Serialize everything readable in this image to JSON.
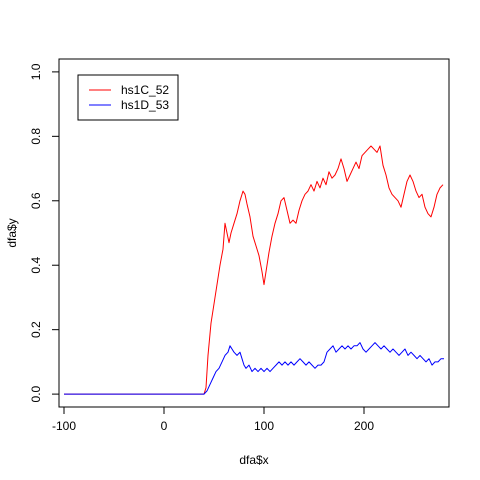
{
  "chart_data": {
    "type": "line",
    "xlabel": "dfa$x",
    "ylabel": "dfa$y",
    "xlim": [
      -105,
      285
    ],
    "ylim": [
      -0.04,
      1.04
    ],
    "x_ticks": [
      "-100",
      "0",
      "100",
      "200"
    ],
    "y_ticks": [
      "0.0",
      "0.2",
      "0.4",
      "0.6",
      "0.8",
      "1.0"
    ],
    "grid": false,
    "legend_position": "top-left",
    "series": [
      {
        "name": "hs1C_52",
        "color": "#ff0000",
        "points": [
          [
            -100,
            0
          ],
          [
            40,
            0
          ],
          [
            42,
            0.02
          ],
          [
            44,
            0.12
          ],
          [
            47,
            0.22
          ],
          [
            50,
            0.28
          ],
          [
            53,
            0.34
          ],
          [
            56,
            0.4
          ],
          [
            59,
            0.45
          ],
          [
            61,
            0.53
          ],
          [
            63,
            0.5
          ],
          [
            65,
            0.47
          ],
          [
            67,
            0.5
          ],
          [
            70,
            0.53
          ],
          [
            73,
            0.56
          ],
          [
            76,
            0.6
          ],
          [
            79,
            0.63
          ],
          [
            81,
            0.62
          ],
          [
            83,
            0.59
          ],
          [
            86,
            0.55
          ],
          [
            89,
            0.49
          ],
          [
            92,
            0.46
          ],
          [
            95,
            0.43
          ],
          [
            98,
            0.38
          ],
          [
            100,
            0.34
          ],
          [
            102,
            0.38
          ],
          [
            105,
            0.44
          ],
          [
            108,
            0.49
          ],
          [
            111,
            0.53
          ],
          [
            114,
            0.56
          ],
          [
            117,
            0.6
          ],
          [
            120,
            0.61
          ],
          [
            123,
            0.57
          ],
          [
            126,
            0.53
          ],
          [
            129,
            0.54
          ],
          [
            132,
            0.53
          ],
          [
            135,
            0.57
          ],
          [
            138,
            0.6
          ],
          [
            141,
            0.62
          ],
          [
            144,
            0.63
          ],
          [
            147,
            0.65
          ],
          [
            150,
            0.63
          ],
          [
            153,
            0.66
          ],
          [
            156,
            0.64
          ],
          [
            159,
            0.67
          ],
          [
            162,
            0.65
          ],
          [
            165,
            0.69
          ],
          [
            168,
            0.67
          ],
          [
            171,
            0.68
          ],
          [
            174,
            0.7
          ],
          [
            177,
            0.73
          ],
          [
            180,
            0.7
          ],
          [
            183,
            0.66
          ],
          [
            186,
            0.68
          ],
          [
            189,
            0.7
          ],
          [
            192,
            0.72
          ],
          [
            195,
            0.7
          ],
          [
            198,
            0.74
          ],
          [
            201,
            0.75
          ],
          [
            204,
            0.76
          ],
          [
            207,
            0.77
          ],
          [
            210,
            0.76
          ],
          [
            213,
            0.75
          ],
          [
            216,
            0.77
          ],
          [
            219,
            0.71
          ],
          [
            222,
            0.68
          ],
          [
            225,
            0.64
          ],
          [
            228,
            0.62
          ],
          [
            231,
            0.61
          ],
          [
            234,
            0.6
          ],
          [
            237,
            0.58
          ],
          [
            240,
            0.62
          ],
          [
            243,
            0.66
          ],
          [
            246,
            0.68
          ],
          [
            249,
            0.66
          ],
          [
            252,
            0.63
          ],
          [
            255,
            0.61
          ],
          [
            258,
            0.62
          ],
          [
            261,
            0.58
          ],
          [
            264,
            0.56
          ],
          [
            267,
            0.55
          ],
          [
            270,
            0.58
          ],
          [
            273,
            0.62
          ],
          [
            276,
            0.64
          ],
          [
            279,
            0.65
          ]
        ]
      },
      {
        "name": "hs1D_53",
        "color": "#0000ff",
        "points": [
          [
            -100,
            0
          ],
          [
            40,
            0
          ],
          [
            43,
            0.01
          ],
          [
            46,
            0.03
          ],
          [
            49,
            0.05
          ],
          [
            52,
            0.07
          ],
          [
            55,
            0.08
          ],
          [
            58,
            0.1
          ],
          [
            61,
            0.12
          ],
          [
            64,
            0.13
          ],
          [
            66,
            0.15
          ],
          [
            68,
            0.14
          ],
          [
            70,
            0.13
          ],
          [
            73,
            0.12
          ],
          [
            76,
            0.13
          ],
          [
            78,
            0.11
          ],
          [
            80,
            0.09
          ],
          [
            82,
            0.08
          ],
          [
            85,
            0.09
          ],
          [
            88,
            0.07
          ],
          [
            91,
            0.08
          ],
          [
            94,
            0.07
          ],
          [
            97,
            0.08
          ],
          [
            100,
            0.07
          ],
          [
            103,
            0.08
          ],
          [
            106,
            0.07
          ],
          [
            109,
            0.08
          ],
          [
            112,
            0.09
          ],
          [
            115,
            0.1
          ],
          [
            118,
            0.09
          ],
          [
            121,
            0.1
          ],
          [
            124,
            0.09
          ],
          [
            127,
            0.1
          ],
          [
            130,
            0.09
          ],
          [
            133,
            0.1
          ],
          [
            136,
            0.11
          ],
          [
            139,
            0.1
          ],
          [
            142,
            0.09
          ],
          [
            145,
            0.1
          ],
          [
            148,
            0.09
          ],
          [
            151,
            0.08
          ],
          [
            154,
            0.09
          ],
          [
            157,
            0.09
          ],
          [
            160,
            0.1
          ],
          [
            163,
            0.13
          ],
          [
            166,
            0.14
          ],
          [
            169,
            0.15
          ],
          [
            172,
            0.13
          ],
          [
            175,
            0.14
          ],
          [
            178,
            0.15
          ],
          [
            181,
            0.14
          ],
          [
            184,
            0.15
          ],
          [
            187,
            0.14
          ],
          [
            190,
            0.15
          ],
          [
            193,
            0.15
          ],
          [
            196,
            0.16
          ],
          [
            199,
            0.14
          ],
          [
            202,
            0.13
          ],
          [
            205,
            0.14
          ],
          [
            208,
            0.15
          ],
          [
            211,
            0.16
          ],
          [
            214,
            0.15
          ],
          [
            217,
            0.14
          ],
          [
            220,
            0.15
          ],
          [
            223,
            0.14
          ],
          [
            226,
            0.13
          ],
          [
            229,
            0.14
          ],
          [
            232,
            0.13
          ],
          [
            235,
            0.12
          ],
          [
            238,
            0.13
          ],
          [
            241,
            0.14
          ],
          [
            244,
            0.12
          ],
          [
            247,
            0.13
          ],
          [
            250,
            0.12
          ],
          [
            253,
            0.11
          ],
          [
            256,
            0.12
          ],
          [
            259,
            0.11
          ],
          [
            262,
            0.1
          ],
          [
            265,
            0.11
          ],
          [
            268,
            0.09
          ],
          [
            271,
            0.1
          ],
          [
            274,
            0.1
          ],
          [
            277,
            0.11
          ],
          [
            280,
            0.11
          ]
        ]
      }
    ]
  }
}
